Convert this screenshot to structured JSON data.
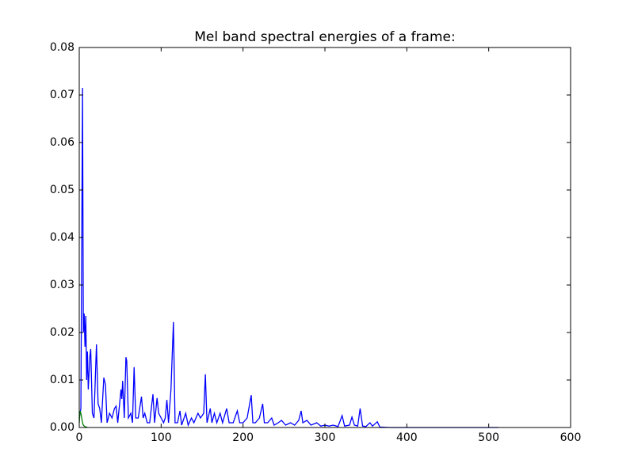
{
  "chart_data": {
    "type": "line",
    "title": "Mel band spectral energies of a frame:",
    "xlim": [
      0,
      600
    ],
    "xticks": [
      0,
      100,
      200,
      300,
      400,
      500,
      600
    ],
    "ylim": [
      0,
      0.08
    ],
    "yticks": [
      {
        "value": 0,
        "label": "0.00"
      },
      {
        "value": 0.01,
        "label": "0.01"
      },
      {
        "value": 0.02,
        "label": "0.02"
      },
      {
        "value": 0.03,
        "label": "0.03"
      },
      {
        "value": 0.04,
        "label": "0.04"
      },
      {
        "value": 0.05,
        "label": "0.05"
      },
      {
        "value": 0.06,
        "label": "0.06"
      },
      {
        "value": 0.07,
        "label": "0.07"
      },
      {
        "value": 0.08,
        "label": "0.08"
      }
    ],
    "grid": false,
    "series": [
      {
        "color": "#0000ff",
        "x": [
          0,
          2,
          4,
          5,
          6,
          7,
          8,
          9,
          10,
          11,
          13,
          14,
          16,
          18,
          21,
          23,
          25,
          27,
          30,
          32,
          34,
          37,
          40,
          43,
          45,
          47,
          51,
          52,
          53,
          55,
          57,
          58,
          60,
          63,
          65,
          67,
          69,
          72,
          76,
          78,
          80,
          83,
          86,
          90,
          92,
          95,
          97,
          100,
          103,
          105,
          107,
          109,
          112,
          115,
          117,
          120,
          123,
          125,
          130,
          133,
          137,
          140,
          145,
          148,
          152,
          154,
          156,
          160,
          162,
          165,
          168,
          172,
          175,
          180,
          183,
          188,
          193,
          196,
          200,
          205,
          210,
          212,
          215,
          220,
          224,
          226,
          230,
          235,
          238,
          243,
          247,
          252,
          258,
          263,
          268,
          271,
          273,
          278,
          283,
          290,
          295,
          300,
          305,
          310,
          316,
          321,
          324,
          330,
          333,
          336,
          340,
          343,
          346,
          350,
          355,
          358,
          364,
          367,
          380,
          512
        ],
        "values": [
          0.002,
          0.004,
          0.0715,
          0.02,
          0.024,
          0.017,
          0.0235,
          0.01,
          0.016,
          0.008,
          0.015,
          0.0165,
          0.003,
          0.002,
          0.0175,
          0.005,
          0.004,
          0.001,
          0.0105,
          0.009,
          0.001,
          0.003,
          0.002,
          0.004,
          0.0045,
          0.001,
          0.008,
          0.006,
          0.0098,
          0.002,
          0.0148,
          0.014,
          0.002,
          0.003,
          0.001,
          0.0127,
          0.002,
          0.002,
          0.0065,
          0.002,
          0.003,
          0.001,
          0.001,
          0.007,
          0.001,
          0.0062,
          0.003,
          0.002,
          0.001,
          0.002,
          0.0058,
          0.001,
          0.008,
          0.0222,
          0.001,
          0.001,
          0.0035,
          0.0005,
          0.003,
          0.0005,
          0.002,
          0.001,
          0.003,
          0.002,
          0.003,
          0.0112,
          0.001,
          0.004,
          0.001,
          0.003,
          0.001,
          0.003,
          0.001,
          0.004,
          0.001,
          0.001,
          0.0035,
          0.001,
          0.001,
          0.002,
          0.0068,
          0.001,
          0.001,
          0.002,
          0.005,
          0.001,
          0.001,
          0.002,
          0.0005,
          0.001,
          0.0015,
          0.0005,
          0.001,
          0.0005,
          0.0015,
          0.0035,
          0.001,
          0.0015,
          0.0005,
          0.001,
          0.0003,
          0.0005,
          0.0003,
          0.0005,
          0.0002,
          0.0025,
          0.0003,
          0.0005,
          0.0022,
          0.0005,
          0.0003,
          0.004,
          0.0003,
          0.0002,
          0.001,
          0.0003,
          0.0012,
          0.0001,
          0,
          0
        ]
      },
      {
        "color": "#008000",
        "x": [
          0,
          1,
          2,
          3,
          4,
          5,
          6,
          7,
          8,
          9,
          10
        ],
        "values": [
          0.001,
          0.0035,
          0.003,
          0.002,
          0.001,
          0.0005,
          0.0003,
          0.0002,
          0.0001,
          0.0001,
          0
        ]
      }
    ]
  }
}
